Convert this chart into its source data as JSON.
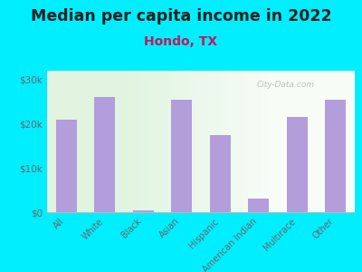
{
  "title": "Median per capita income in 2022",
  "subtitle": "Hondo, TX",
  "categories": [
    "All",
    "White",
    "Black",
    "Asian",
    "Hispanic",
    "American Indian",
    "Multirace",
    "Other"
  ],
  "values": [
    21000,
    26000,
    500,
    25500,
    17500,
    3000,
    21500,
    25500
  ],
  "bar_color": "#b39ddb",
  "bg_outer": "#00eeff",
  "title_color": "#212121",
  "subtitle_color": "#c2185b",
  "tick_color": "#666666",
  "watermark": "City-Data.com",
  "ylim": [
    0,
    32000
  ],
  "yticks": [
    0,
    10000,
    20000,
    30000
  ],
  "ytick_labels": [
    "$0",
    "$10k",
    "$20k",
    "$30k"
  ],
  "title_fontsize": 12.5,
  "subtitle_fontsize": 10
}
